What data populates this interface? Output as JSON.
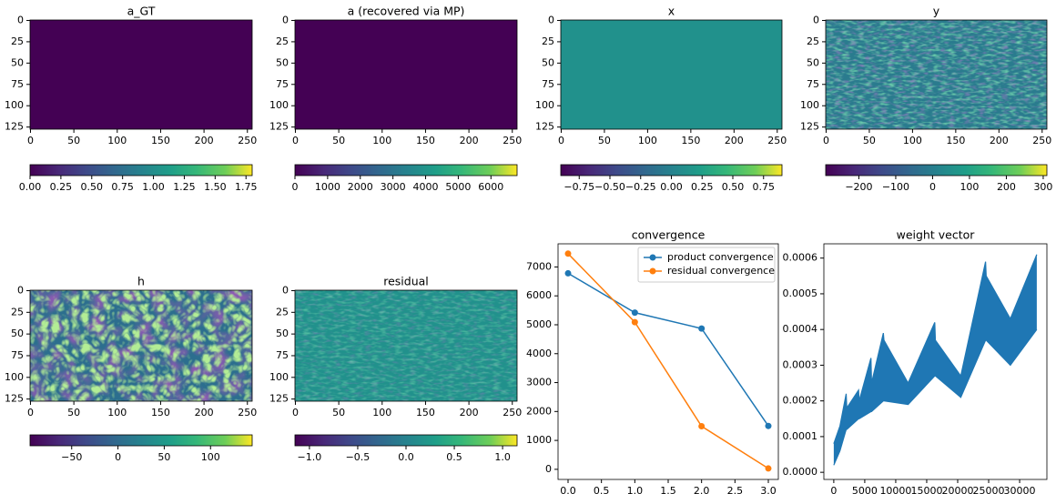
{
  "chart_data": [
    {
      "type": "heatmap",
      "title": "a_GT",
      "xlim": [
        -0.5,
        255.5
      ],
      "xticks": [
        0,
        50,
        100,
        150,
        200,
        250
      ],
      "ylim": [
        127.5,
        -0.5
      ],
      "yticks": [
        0,
        25,
        50,
        75,
        100,
        125
      ],
      "colormap": "viridis",
      "colorbar": {
        "lim": [
          0,
          1.8
        ],
        "ticks": [
          {
            "value": 0,
            "label": "0.00"
          },
          0.25,
          {
            "value": 0.5,
            "label": "0.50"
          },
          0.75,
          {
            "value": 1,
            "label": "1.00"
          },
          1.25,
          {
            "value": 1.5,
            "label": "1.50"
          },
          1.75
        ]
      }
    },
    {
      "type": "heatmap",
      "title": "a (recovered via MP)",
      "xlim": [
        -0.5,
        255.5
      ],
      "xticks": [
        0,
        50,
        100,
        150,
        200,
        250
      ],
      "ylim": [
        127.5,
        -0.5
      ],
      "yticks": [
        0,
        25,
        50,
        75,
        100,
        125
      ],
      "colormap": "viridis",
      "colorbar": {
        "lim": [
          0,
          6800
        ],
        "ticks": [
          0,
          1000,
          2000,
          3000,
          4000,
          5000,
          6000
        ]
      }
    },
    {
      "type": "heatmap",
      "title": "x",
      "xlim": [
        -0.5,
        255.5
      ],
      "xticks": [
        0,
        50,
        100,
        150,
        200,
        250
      ],
      "ylim": [
        127.5,
        -0.5
      ],
      "yticks": [
        0,
        25,
        50,
        75,
        100,
        125
      ],
      "colormap": "viridis",
      "colorbar": {
        "lim": [
          -0.9,
          0.9
        ],
        "ticks": [
          {
            "value": -0.75,
            "label": "−0.75"
          },
          {
            "value": -0.5,
            "label": "−0.50"
          },
          {
            "value": -0.25,
            "label": "−0.25"
          },
          {
            "value": 0,
            "label": "0.00"
          },
          0.25,
          {
            "value": 0.5,
            "label": "0.50"
          },
          0.75
        ]
      }
    },
    {
      "type": "heatmap",
      "title": "y",
      "xlim": [
        -0.5,
        255.5
      ],
      "xticks": [
        0,
        50,
        100,
        150,
        200,
        250
      ],
      "ylim": [
        127.5,
        -0.5
      ],
      "yticks": [
        0,
        25,
        50,
        75,
        100,
        125
      ],
      "colormap": "viridis",
      "colorbar": {
        "lim": [
          -290,
          310
        ],
        "ticks": [
          {
            "value": -200,
            "label": "−200"
          },
          {
            "value": -100,
            "label": "−100"
          },
          0,
          100,
          200,
          300
        ]
      }
    },
    {
      "type": "heatmap",
      "title": "h",
      "xlim": [
        -0.5,
        255.5
      ],
      "xticks": [
        0,
        50,
        100,
        150,
        200,
        250
      ],
      "ylim": [
        127.5,
        -0.5
      ],
      "yticks": [
        0,
        25,
        50,
        75,
        100,
        125
      ],
      "colormap": "viridis",
      "colorbar": {
        "lim": [
          -95,
          145
        ],
        "ticks": [
          {
            "value": -50,
            "label": "−50"
          },
          0,
          50,
          100
        ]
      }
    },
    {
      "type": "heatmap",
      "title": "residual",
      "xlim": [
        -0.5,
        255.5
      ],
      "xticks": [
        0,
        50,
        100,
        150,
        200,
        250
      ],
      "ylim": [
        127.5,
        -0.5
      ],
      "yticks": [
        0,
        25,
        50,
        75,
        100,
        125
      ],
      "colormap": "viridis",
      "colorbar": {
        "lim": [
          -1.15,
          1.15
        ],
        "ticks": [
          {
            "value": -1,
            "label": "−1.0"
          },
          {
            "value": -0.5,
            "label": "−0.5"
          },
          {
            "value": 0,
            "label": "0.0"
          },
          0.5,
          {
            "value": 1,
            "label": "1.0"
          }
        ]
      }
    },
    {
      "type": "line",
      "title": "convergence",
      "x": [
        0,
        1,
        2,
        3
      ],
      "series": [
        {
          "name": "product convergence",
          "color": "#1f77b4",
          "values": [
            6780,
            5420,
            4870,
            1500
          ]
        },
        {
          "name": "residual convergence",
          "color": "#ff7f0e",
          "values": [
            7460,
            5090,
            1490,
            30
          ]
        }
      ],
      "xlim": [
        -0.15,
        3.15
      ],
      "xticks": [
        {
          "value": 0,
          "label": "0.0"
        },
        0.5,
        {
          "value": 1,
          "label": "1.0"
        },
        1.5,
        {
          "value": 2,
          "label": "2.0"
        },
        2.5,
        {
          "value": 3,
          "label": "3.0"
        }
      ],
      "ylim": [
        -350,
        7800
      ],
      "yticks": [
        0,
        1000,
        2000,
        3000,
        4000,
        5000,
        6000,
        7000
      ],
      "legend": "upper right"
    },
    {
      "type": "band",
      "title": "weight vector",
      "x": [
        0,
        1000,
        2000,
        2100,
        4000,
        4100,
        6000,
        6100,
        8000,
        8100,
        12000,
        16300,
        16400,
        20500,
        24500,
        24600,
        28500,
        32768
      ],
      "series": [
        {
          "color": "#1f77b4",
          "values": [
            8e-05,
            0.00013,
            0.00022,
            0.00018,
            0.00023,
            0.0002,
            0.00032,
            0.00025,
            0.00039,
            0.00037,
            0.00025,
            0.00042,
            0.00037,
            0.00027,
            0.00059,
            0.00055,
            0.00043,
            0.00061
          ]
        },
        {
          "color": "#1f77b4",
          "values": [
            2e-05,
            6e-05,
            0.00012,
            0.00012,
            0.00015,
            0.00015,
            0.00017,
            0.00017,
            0.0002,
            0.0002,
            0.00019,
            0.00027,
            0.00027,
            0.00021,
            0.00037,
            0.00037,
            0.0003,
            0.0004
          ]
        }
      ],
      "xlim": [
        -1600,
        34400
      ],
      "xticks": [
        0,
        5000,
        10000,
        15000,
        20000,
        25000,
        30000
      ],
      "ylim": [
        -2e-05,
        0.00064
      ],
      "yticks": [
        {
          "value": 0,
          "label": "0.0000"
        },
        0.0001,
        0.0002,
        0.0003,
        0.0004,
        0.0005,
        0.0006
      ]
    }
  ]
}
